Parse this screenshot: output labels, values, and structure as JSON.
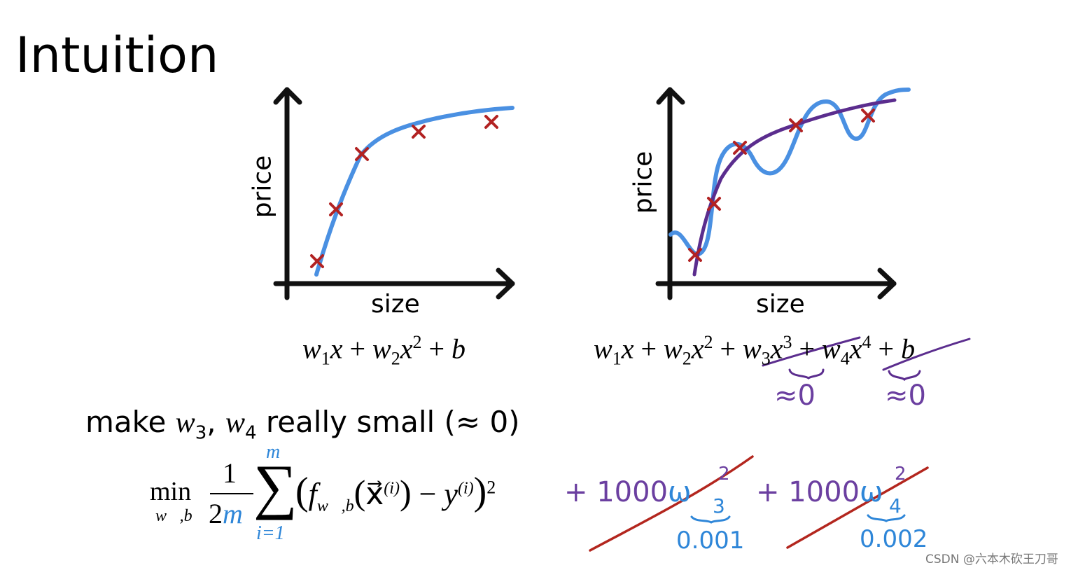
{
  "title": "Intuition",
  "chart_data": [
    {
      "type": "scatter",
      "title": "",
      "xlabel": "size",
      "ylabel": "price",
      "fit": "quadratic (smooth, slightly curved)",
      "points": [
        [
          1.0,
          0.9
        ],
        [
          1.5,
          2.4
        ],
        [
          2.0,
          4.1
        ],
        [
          3.5,
          4.9
        ],
        [
          5.0,
          5.2
        ]
      ]
    },
    {
      "type": "scatter",
      "title": "",
      "xlabel": "size",
      "ylabel": "price",
      "fit": "higher order polynomial (wiggly) and regularized fit (smooth)",
      "points": [
        [
          1.0,
          0.8
        ],
        [
          1.5,
          2.5
        ],
        [
          2.0,
          4.3
        ],
        [
          3.5,
          4.9
        ],
        [
          5.0,
          5.3
        ]
      ]
    }
  ],
  "eq_left": {
    "w1": "w",
    "s1": "1",
    "x1": "x",
    "plus1": " + ",
    "w2": "w",
    "s2": "2",
    "x2": "x",
    "p2": "2",
    "plus2": " + ",
    "b": "b"
  },
  "eq_right": {
    "w1": "w",
    "s1": "1",
    "x1": "x",
    "plus1": " + ",
    "w2": "w",
    "s2": "2",
    "x2": "x",
    "p2": "2",
    "plus2": " + ",
    "w3": "w",
    "s3": "3",
    "x3": "x",
    "p3": "3",
    "plus3": " + ",
    "w4": "w",
    "s4": "4",
    "x4": "x",
    "p4": "4",
    "plus4": " + ",
    "b": "b"
  },
  "approx_w3": "≈0",
  "approx_w4": "≈0",
  "make_line": {
    "pre": "make ",
    "w3": "w",
    "s3": "3",
    "comma": ", ",
    "w4": "w",
    "s4": "4",
    "post": " really small (≈ 0)"
  },
  "cost": {
    "min": "min",
    "min_sub": "w⃗,b",
    "one": "1",
    "two": "2",
    "m": "m",
    "sum": "∑",
    "sum_top": "m",
    "sum_bottom": "i=1",
    "body_open": "(",
    "f": "f",
    "f_sub": "w⃗,b",
    "paren_open": "(",
    "x_vec": "x⃗",
    "x_sup": "(i)",
    "paren_close": ")",
    "minus": " − ",
    "y": "y",
    "y_sup": "(i)",
    "body_close": ")",
    "sq": "2"
  },
  "penalty1": {
    "term": "+ 1000",
    "w": "ω",
    "sup": "2",
    "sub": "3",
    "value": "0.001"
  },
  "penalty2": {
    "term": "+ 1000",
    "w": "ω",
    "sup": "2",
    "sub": "4",
    "value": "0.002"
  },
  "watermark": "CSDN @六本木砍王刀哥",
  "colors": {
    "fit_blue": "#4a90e2",
    "fit_purple": "#5b2d8e",
    "cross_red": "#b22222",
    "strike_red": "#b3261e",
    "hand_blue": "#2e86d8",
    "hand_purple": "#6b3fa0"
  }
}
